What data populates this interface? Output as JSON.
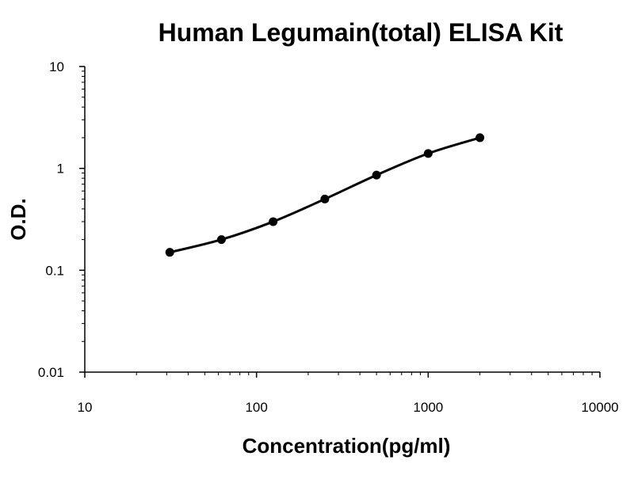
{
  "chart_data": {
    "type": "line",
    "title": "Human Legumain(total) ELISA Kit",
    "xlabel": "Concentration(pg/ml)",
    "ylabel": "O.D.",
    "x_scale": "log",
    "y_scale": "log",
    "xlim": [
      10,
      10000
    ],
    "ylim": [
      0.01,
      10
    ],
    "x_ticks": [
      10,
      100,
      1000,
      10000
    ],
    "x_tick_labels": [
      "10",
      "100",
      "1000",
      "10000"
    ],
    "y_ticks": [
      0.01,
      0.1,
      1,
      10
    ],
    "y_tick_labels": [
      "0.01",
      "0.1",
      "1",
      "10"
    ],
    "grid": false,
    "legend": "none",
    "series": [
      {
        "x": [
          31.25,
          62.5,
          125,
          250,
          500,
          1000,
          2000
        ],
        "y": [
          0.15,
          0.2,
          0.3,
          0.5,
          0.86,
          1.4,
          2.0
        ],
        "color": "#000000",
        "marker": "circle"
      }
    ]
  }
}
